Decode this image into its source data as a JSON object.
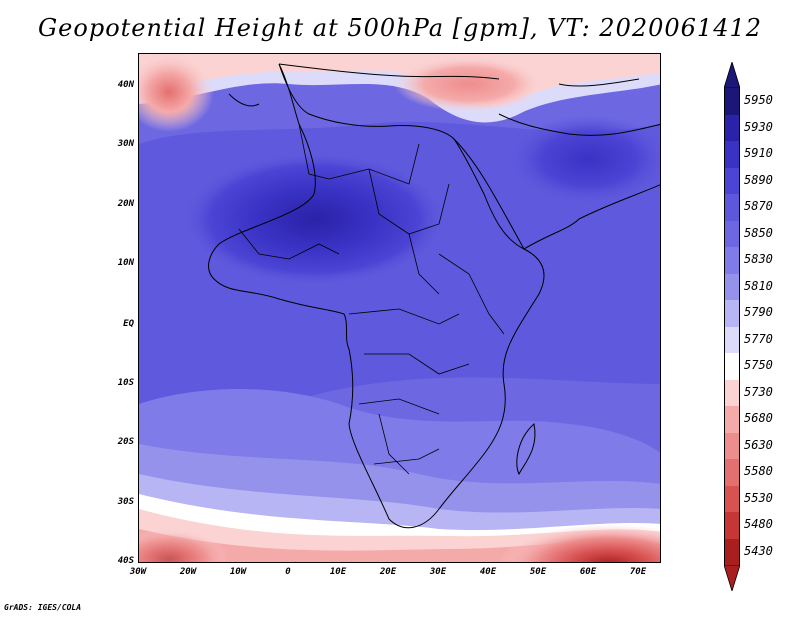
{
  "title": "Geopotential Height at 500hPa [gpm], VT: 2020061412",
  "credit": "GrADS: IGES/COLA",
  "map": {
    "projection": "latlon",
    "lon_range": [
      -30,
      75
    ],
    "lat_range": [
      -40,
      45
    ],
    "lat_ticks": [
      "40N",
      "30N",
      "20N",
      "10N",
      "EQ",
      "10S",
      "20S",
      "30S",
      "40S"
    ],
    "lon_ticks": [
      "30W",
      "20W",
      "10W",
      "0",
      "10E",
      "20E",
      "30E",
      "40E",
      "50E",
      "60E",
      "70E"
    ],
    "field": "500 hPa geopotential height (gpm)"
  },
  "colorbar": {
    "levels": [
      "5950",
      "5930",
      "5910",
      "5890",
      "5870",
      "5850",
      "5830",
      "5810",
      "5790",
      "5770",
      "5750",
      "5730",
      "5680",
      "5630",
      "5580",
      "5530",
      "5480",
      "5430"
    ],
    "colors": [
      "#1c1678",
      "#2a22a8",
      "#3a32c4",
      "#4c44d4",
      "#5d57dc",
      "#6d68e2",
      "#7f7be8",
      "#9592ec",
      "#b7b5f3",
      "#dcdbfa",
      "#ffffff",
      "#fbd3d3",
      "#f5aaaa",
      "#ee8d8d",
      "#e46f6f",
      "#d95252",
      "#c73636",
      "#a91f1f"
    ],
    "top_color": "#1c1678",
    "bottom_color": "#a91f1f"
  }
}
